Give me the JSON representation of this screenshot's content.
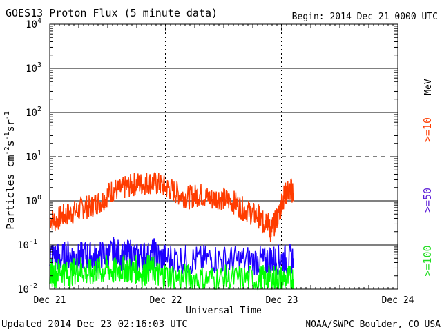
{
  "chart_data": {
    "type": "line",
    "title": "GOES13 Proton Flux (5 minute data)",
    "begin_label": "Begin: 2014 Dec 21 0000 UTC",
    "ylabel": "Particles cm⁻²s⁻¹sr⁻¹",
    "ylabel_parts": {
      "base": "Particles cm",
      "sup1": "-2",
      "mid1": "s",
      "sup2": "-1",
      "mid2": "sr",
      "sup3": "-1"
    },
    "xlabel": "Universal Time",
    "y_scale": "log",
    "ylim": [
      0.01,
      10000
    ],
    "yticks": [
      {
        "value": 10000,
        "base": "10",
        "exp": "4"
      },
      {
        "value": 1000,
        "base": "10",
        "exp": "3"
      },
      {
        "value": 100,
        "base": "10",
        "exp": "2"
      },
      {
        "value": 10,
        "base": "10",
        "exp": "1"
      },
      {
        "value": 1,
        "base": "10",
        "exp": "0"
      },
      {
        "value": 0.1,
        "base": "10",
        "exp": "-1"
      },
      {
        "value": 0.01,
        "base": "10",
        "exp": "-2"
      }
    ],
    "xlim_days": [
      0,
      3
    ],
    "xticks": [
      {
        "day": 0,
        "label": "Dec 21"
      },
      {
        "day": 1,
        "label": "Dec 22"
      },
      {
        "day": 2,
        "label": "Dec 23"
      },
      {
        "day": 3,
        "label": "Dec 24"
      }
    ],
    "solid_gridlines": [
      1000,
      100,
      1,
      0.1
    ],
    "dashed_gridlines": [
      10
    ],
    "series": [
      {
        "name": ">=10",
        "color": "#ff3c00",
        "x": [
          0.0,
          0.05,
          0.1,
          0.15,
          0.2,
          0.25,
          0.3,
          0.35,
          0.4,
          0.45,
          0.5,
          0.55,
          0.6,
          0.65,
          0.7,
          0.75,
          0.8,
          0.85,
          0.9,
          0.95,
          1.0,
          1.05,
          1.1,
          1.15,
          1.2,
          1.25,
          1.3,
          1.35,
          1.4,
          1.45,
          1.5,
          1.55,
          1.6,
          1.65,
          1.7,
          1.75,
          1.8,
          1.82,
          1.85,
          1.87,
          1.9,
          1.92,
          1.95,
          1.98,
          2.0,
          2.02,
          2.05,
          2.08,
          2.1
        ],
        "y": [
          0.4,
          0.35,
          0.45,
          0.5,
          0.55,
          0.6,
          0.75,
          0.7,
          0.9,
          1.0,
          1.4,
          1.8,
          1.7,
          2.0,
          2.2,
          2.5,
          2.4,
          2.6,
          2.5,
          2.3,
          2.0,
          1.8,
          1.5,
          1.3,
          1.2,
          1.3,
          1.4,
          1.2,
          1.1,
          1.2,
          1.1,
          1.0,
          0.9,
          0.7,
          0.6,
          0.5,
          0.45,
          0.35,
          0.3,
          0.45,
          0.2,
          0.25,
          0.35,
          0.6,
          0.9,
          1.3,
          1.6,
          1.8,
          1.5
        ]
      },
      {
        "name": ">=50",
        "color": "#1e00ff",
        "x": [
          0.0,
          0.05,
          0.1,
          0.15,
          0.2,
          0.25,
          0.3,
          0.35,
          0.4,
          0.45,
          0.5,
          0.55,
          0.6,
          0.65,
          0.7,
          0.75,
          0.8,
          0.85,
          0.9,
          0.95,
          1.0,
          1.1,
          1.2,
          1.3,
          1.4,
          1.5,
          1.6,
          1.7,
          1.8,
          1.85,
          1.9,
          1.95,
          2.0,
          2.05,
          2.1
        ],
        "y": [
          0.06,
          0.055,
          0.05,
          0.06,
          0.055,
          0.05,
          0.06,
          0.055,
          0.05,
          0.06,
          0.055,
          0.07,
          0.06,
          0.055,
          0.065,
          0.05,
          0.06,
          0.055,
          0.065,
          0.05,
          0.05,
          0.05,
          0.045,
          0.045,
          0.05,
          0.045,
          0.045,
          0.045,
          0.045,
          0.04,
          0.05,
          0.045,
          0.05,
          0.045,
          0.05
        ]
      },
      {
        "name": ">=100",
        "color": "#00ff00",
        "x": [
          0.0,
          0.05,
          0.1,
          0.15,
          0.2,
          0.25,
          0.3,
          0.35,
          0.4,
          0.45,
          0.5,
          0.55,
          0.6,
          0.65,
          0.7,
          0.75,
          0.8,
          0.85,
          0.9,
          0.95,
          1.0,
          1.1,
          1.2,
          1.3,
          1.4,
          1.5,
          1.6,
          1.7,
          1.8,
          1.85,
          1.9,
          1.95,
          2.0,
          2.05,
          2.1
        ],
        "y": [
          0.025,
          0.022,
          0.028,
          0.02,
          0.025,
          0.03,
          0.025,
          0.022,
          0.028,
          0.025,
          0.03,
          0.025,
          0.028,
          0.03,
          0.025,
          0.028,
          0.022,
          0.03,
          0.025,
          0.02,
          0.02,
          0.018,
          0.018,
          0.017,
          0.017,
          0.017,
          0.017,
          0.017,
          0.017,
          0.017,
          0.017,
          0.018,
          0.017,
          0.017,
          0.017
        ]
      }
    ],
    "energy_labels": [
      {
        "text": ">=10",
        "color": "#ff3c00"
      },
      {
        "text": ">=50",
        "color": "#5a1ad6"
      },
      {
        "text": ">=100",
        "color": "#22dd22"
      }
    ],
    "unit_label": "MeV",
    "grid": true,
    "legend_position": "right"
  },
  "footer": {
    "updated": "Updated 2014 Dec 23 02:16:03 UTC",
    "credit": "NOAA/SWPC Boulder, CO USA"
  }
}
